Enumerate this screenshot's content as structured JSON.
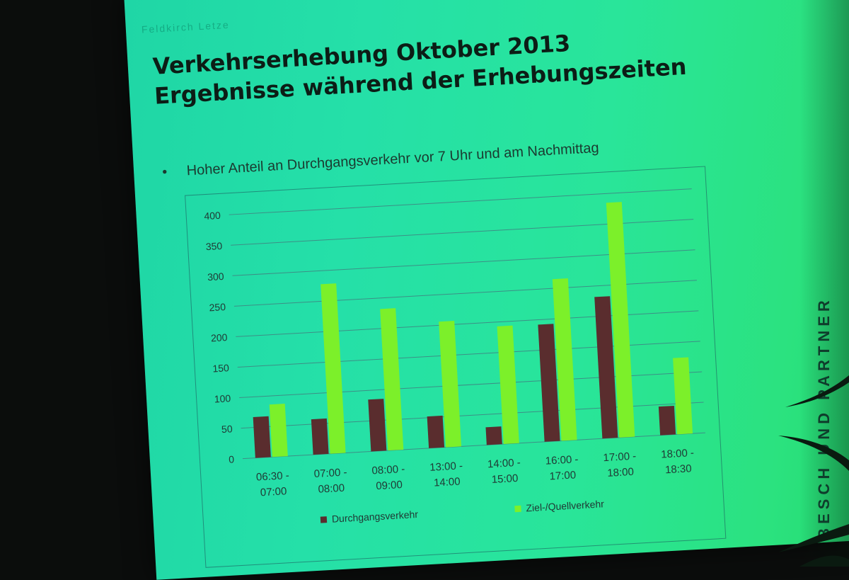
{
  "slide": {
    "watermark": "Feldkirch Letze",
    "title_line1": "Verkehrserhebung Oktober 2013",
    "title_line2": "Ergebnisse während der Erhebungszeiten",
    "bullet_text": "Hoher Anteil an Durchgangsverkehr vor 7 Uhr und am Nachmittag",
    "branding": "BESCH UND PARTNER"
  },
  "colors": {
    "durchgang": "#5a2d2e",
    "ziel": "#7cf02a",
    "grid": "#3d8f86",
    "axis_text": "#203a35"
  },
  "chart_data": {
    "type": "bar",
    "categories": [
      [
        "06:30 -",
        "07:00"
      ],
      [
        "07:00 -",
        "08:00"
      ],
      [
        "08:00 -",
        "09:00"
      ],
      [
        "13:00 -",
        "14:00"
      ],
      [
        "14:00 -",
        "15:00"
      ],
      [
        "16:00 -",
        "17:00"
      ],
      [
        "17:00 -",
        "18:00"
      ],
      [
        "18:00 -",
        "18:30"
      ]
    ],
    "series": [
      {
        "name": "Durchgangsverkehr",
        "values": [
          67,
          58,
          85,
          52,
          29,
          192,
          232,
          47
        ]
      },
      {
        "name": "Ziel-/Quellverkehr",
        "values": [
          86,
          278,
          232,
          206,
          193,
          265,
          385,
          125
        ]
      }
    ],
    "ylim": [
      0,
      400
    ],
    "yticks": [
      0,
      50,
      100,
      150,
      200,
      250,
      300,
      350,
      400
    ],
    "grid": true,
    "legend_position": "bottom"
  }
}
